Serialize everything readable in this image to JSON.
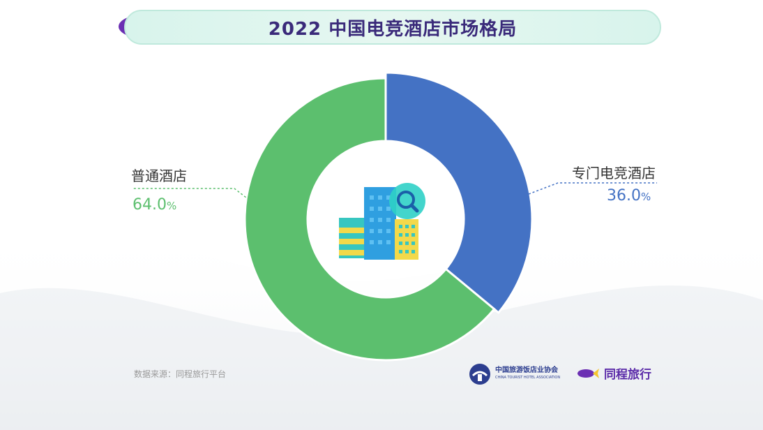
{
  "title": "2022 中国电竞酒店市场格局",
  "chart_data": {
    "type": "pie",
    "title": "2022 中国电竞酒店市场格局",
    "slices": [
      {
        "label": "专门电竞酒店",
        "value": 36.0,
        "display": "36.0",
        "unit": "%",
        "color": "#4472c4"
      },
      {
        "label": "普通酒店",
        "value": 64.0,
        "display": "64.0",
        "unit": "%",
        "color": "#5cbf6e"
      }
    ]
  },
  "source": "数据来源：同程旅行平台",
  "logos": {
    "association": "中国旅游饭店业协会",
    "association_en": "CHINA TOURIST HOTEL ASSOCIATION",
    "brand": "同程旅行"
  }
}
